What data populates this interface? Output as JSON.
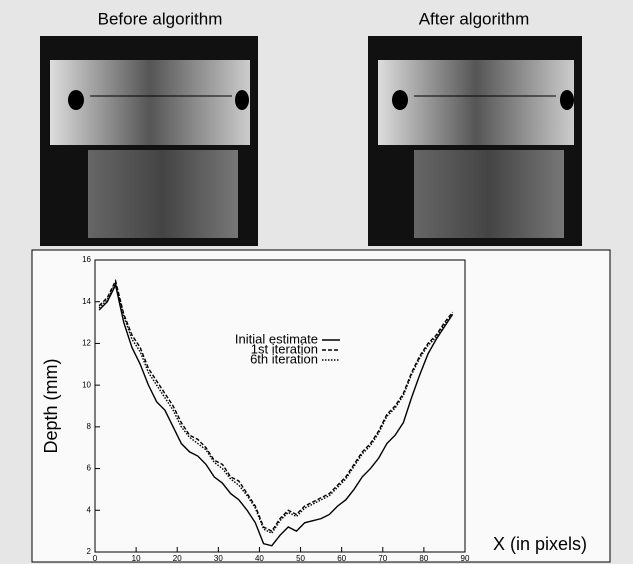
{
  "images": [
    {
      "title": "Before algorithm"
    },
    {
      "title": "After algorithm"
    }
  ],
  "chart_data": {
    "type": "line",
    "xlabel": "X (in pixels)",
    "ylabel": "Depth (mm)",
    "x": [
      1,
      3,
      5,
      7,
      9,
      11,
      13,
      15,
      17,
      19,
      21,
      23,
      25,
      27,
      29,
      31,
      33,
      35,
      37,
      39,
      41,
      43,
      45,
      47,
      49,
      51,
      53,
      55,
      57,
      59,
      61,
      63,
      65,
      67,
      69,
      71,
      73,
      75,
      77,
      79,
      81,
      83,
      85,
      87
    ],
    "series": [
      {
        "name": "Initial estimate",
        "color": "#000000",
        "style": "solid",
        "values": [
          13.6,
          14,
          14.8,
          13,
          11.8,
          11,
          10,
          9.2,
          8.8,
          8,
          7.2,
          6.8,
          6.6,
          6.2,
          5.6,
          5.3,
          4.8,
          4.5,
          4,
          3.4,
          2.4,
          2.3,
          2.8,
          3.2,
          3,
          3.4,
          3.5,
          3.6,
          3.8,
          4.2,
          4.5,
          5,
          5.6,
          6,
          6.5,
          7.2,
          7.6,
          8.2,
          9.4,
          10.5,
          11.5,
          12.2,
          12.8,
          13.4
        ]
      },
      {
        "name": "1st iteration",
        "color": "#000000",
        "style": "dashed",
        "values": [
          13.8,
          14.2,
          15,
          13.4,
          12.4,
          11.8,
          10.8,
          10.2,
          9.6,
          9,
          8.2,
          7.6,
          7.4,
          7,
          6.4,
          6.2,
          5.6,
          5.4,
          4.8,
          4.2,
          3.2,
          3,
          3.6,
          4,
          3.8,
          4.2,
          4.4,
          4.6,
          4.8,
          5.2,
          5.6,
          6.2,
          6.8,
          7.2,
          7.8,
          8.6,
          9,
          9.6,
          10.6,
          11.4,
          12,
          12.4,
          13,
          13.5
        ]
      },
      {
        "name": "6th iteration",
        "color": "#000000",
        "style": "dotted",
        "values": [
          13.7,
          14.1,
          14.9,
          13.3,
          12.2,
          11.6,
          10.6,
          10,
          9.4,
          8.8,
          8,
          7.5,
          7.2,
          6.9,
          6.3,
          6,
          5.5,
          5.2,
          4.7,
          4.1,
          3.1,
          2.9,
          3.5,
          3.9,
          3.7,
          4.1,
          4.3,
          4.5,
          4.7,
          5.1,
          5.5,
          6.1,
          6.7,
          7.1,
          7.7,
          8.5,
          8.9,
          9.5,
          10.5,
          11.3,
          11.9,
          12.3,
          12.9,
          13.4
        ]
      }
    ],
    "xlim": [
      0,
      90
    ],
    "xticks": [
      0,
      10,
      20,
      30,
      40,
      50,
      60,
      70,
      80,
      90
    ],
    "ylim": [
      2,
      16
    ],
    "yticks": [
      2,
      4,
      6,
      8,
      10,
      12,
      14,
      16
    ]
  }
}
